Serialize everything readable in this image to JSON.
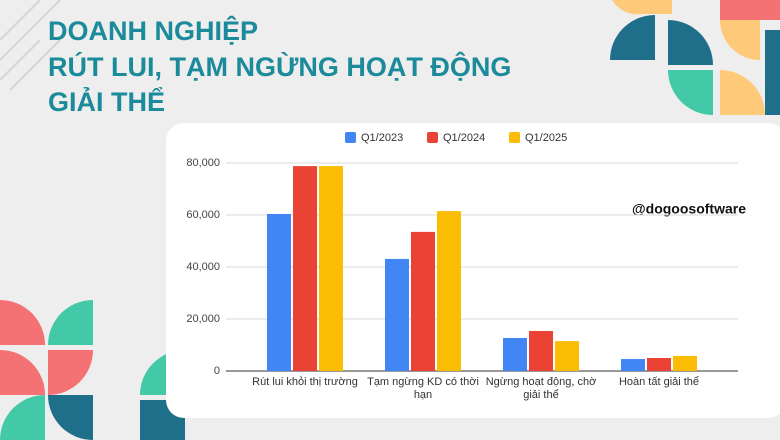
{
  "header": {
    "title_lines": [
      "DOANH NGHIỆP",
      "RÚT LUI, TẠM NGỪNG HOẠT ĐỘNG",
      "GIẢI THỂ"
    ]
  },
  "chart_data": {
    "type": "bar",
    "categories": [
      "Rút lui khỏi thị trường",
      "Tạm ngừng KD có thời hạn",
      "Ngừng hoạt động, chờ giải thể",
      "Hoàn tất giải thể"
    ],
    "series": [
      {
        "name": "Q1/2023",
        "color": "#4285f4",
        "values": [
          60400,
          43100,
          12700,
          4600
        ]
      },
      {
        "name": "Q1/2024",
        "color": "#ea4335",
        "values": [
          78800,
          53500,
          15400,
          5000
        ]
      },
      {
        "name": "Q1/2025",
        "color": "#fbbc04",
        "values": [
          78800,
          61500,
          11500,
          5800
        ]
      }
    ],
    "ylim": [
      0,
      80000
    ],
    "yticks": [
      0,
      {
        "value": 20000,
        "label": "20,000"
      },
      {
        "value": 40000,
        "label": "40,000"
      },
      {
        "value": 60000,
        "label": "60,000"
      },
      {
        "value": 80000,
        "label": "80,000"
      }
    ],
    "grid": true,
    "legend": "top",
    "annotation": "@dogoosoftware"
  }
}
